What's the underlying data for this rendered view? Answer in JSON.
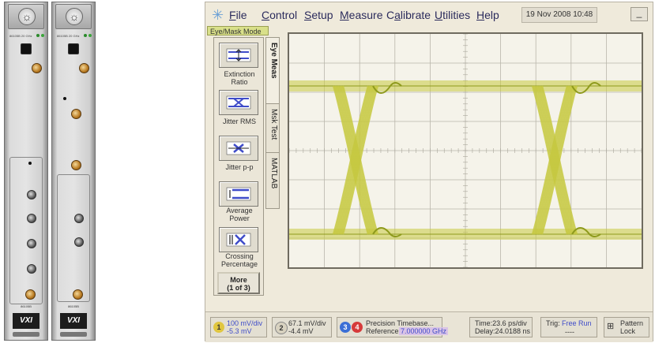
{
  "modules": [
    {
      "name": "module-left",
      "label": "86105B",
      "vxi": "VXI"
    },
    {
      "name": "module-right",
      "label": "86105B",
      "vxi": "VXI"
    }
  ],
  "menu": {
    "items": [
      {
        "label": "File",
        "key": "F",
        "rest": "ile"
      },
      {
        "label": "Control",
        "key": "C",
        "rest": "ontrol"
      },
      {
        "label": "Setup",
        "key": "S",
        "rest": "etup"
      },
      {
        "label": "Measure",
        "key": "M",
        "rest": "easure"
      },
      {
        "label": "Calibrate",
        "key": "a",
        "pre": "C",
        "rest": "librate"
      },
      {
        "label": "Utilities",
        "key": "U",
        "rest": "tilities"
      },
      {
        "label": "Help",
        "key": "H",
        "rest": "elp"
      }
    ],
    "datetime": "19 Nov 2008  10:48",
    "minimize": "_"
  },
  "mode": "Eye/Mask Mode",
  "measurements": [
    {
      "label": "Extinction Ratio",
      "icon": "extinction-ratio-icon"
    },
    {
      "label": "Jitter RMS",
      "icon": "jitter-rms-icon"
    },
    {
      "label": "Jitter p-p",
      "icon": "jitter-pp-icon"
    },
    {
      "label": "Average Power",
      "icon": "average-power-icon"
    },
    {
      "label": "Crossing Percentage",
      "icon": "crossing-percentage-icon"
    }
  ],
  "more": {
    "line1": "More",
    "line2": "(1 of 3)"
  },
  "tabs": [
    "Eye Meas",
    "Msk Test",
    "MATLAB"
  ],
  "status": {
    "ch1": {
      "num": "1",
      "scale": "100 mV/div",
      "offset": "-5.3 mV"
    },
    "ch2": {
      "num": "2",
      "scale": "67.1 mV/div",
      "offset": "-4.4 mV"
    },
    "timebase": {
      "c3": "3",
      "c4": "4",
      "line1": "Precision Timebase...",
      "ref_label": "Reference:",
      "ref_value": "7.000000 GHz"
    },
    "time": {
      "line1": "Time:23.6 ps/div",
      "line2": "Delay:24.0188 ns"
    },
    "trig": {
      "label": "Trig:",
      "value": "Free Run",
      "sub": "----"
    },
    "pattern": {
      "line1": "Pattern",
      "line2": "Lock"
    }
  },
  "colors": {
    "trace": "#c6c840",
    "trace_dark": "#8e9a1c",
    "accent_blue": "#3f4cc9",
    "ch1": "#e0c640",
    "ch2": "#7a7a7a",
    "ch3": "#3b6fd6",
    "ch4": "#d63a3a"
  }
}
